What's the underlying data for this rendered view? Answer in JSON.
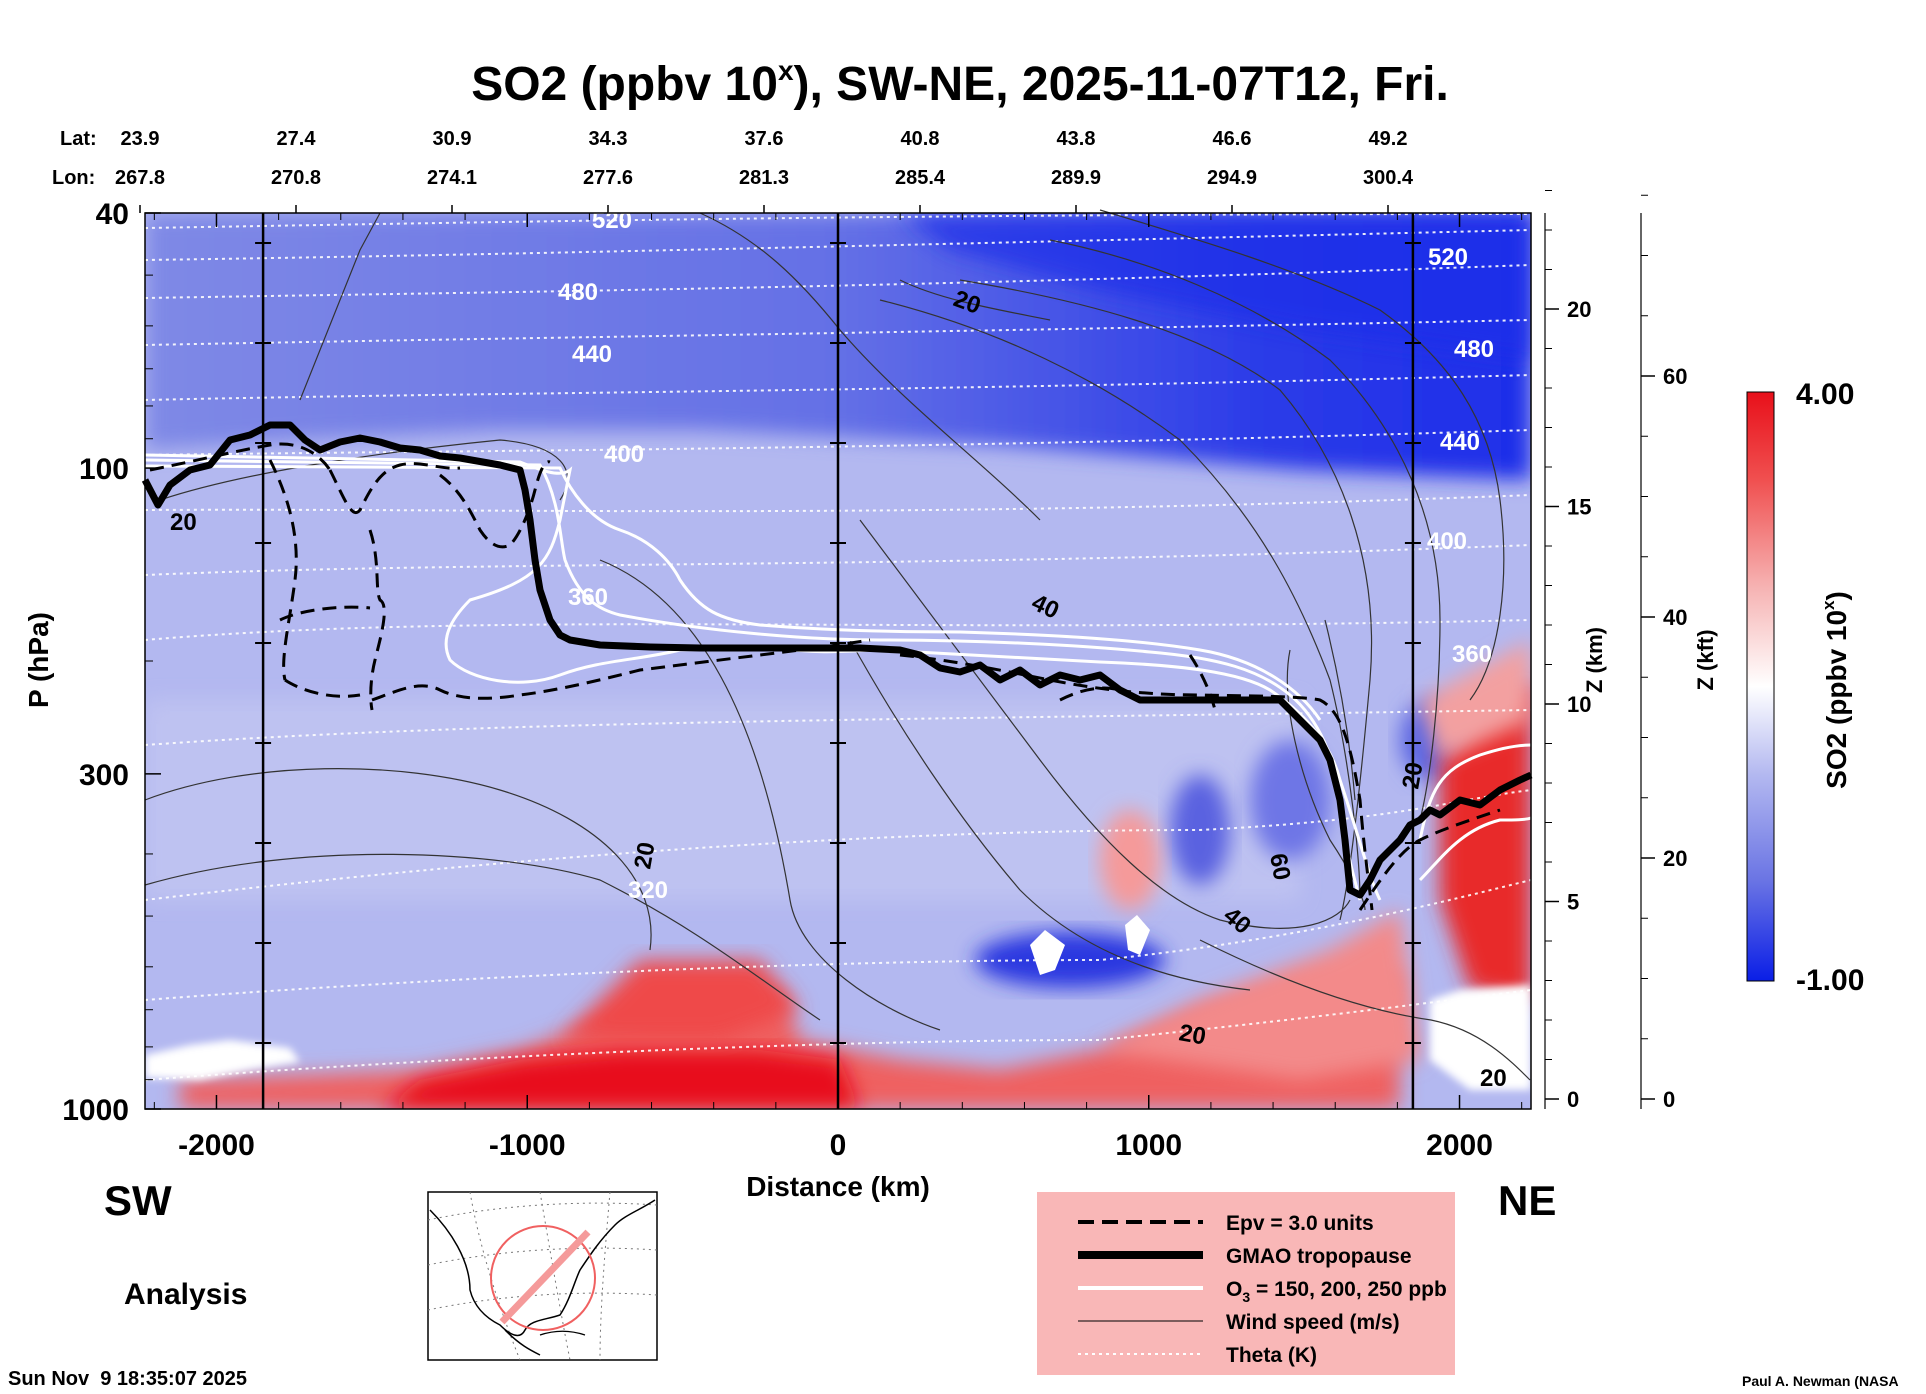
{
  "chart_data": {
    "type": "heatmap",
    "title": "SO2 (ppbv 10",
    "title_sup": "x",
    "title_suffix": "), SW-NE, 2025-11-07T12, Fri.",
    "xlabel": "Distance (km)",
    "ylabel": "P (hPa)",
    "xlim": [
      -2230,
      2230
    ],
    "ylim": [
      1000,
      40
    ],
    "y_scale": "log",
    "x_ticks": [
      "-2000",
      "-1000",
      "0",
      "1000",
      "2000"
    ],
    "x_tick_values": [
      -2000,
      -1000,
      0,
      1000,
      2000
    ],
    "y_ticks": [
      "40",
      "100",
      "300",
      "1000"
    ],
    "y_tick_values": [
      40,
      100,
      300,
      1000
    ],
    "z_km_label": "Z (km)",
    "z_km_ticks": [
      "0",
      "5",
      "10",
      "15",
      "20"
    ],
    "z_kft_label": "Z (kft)",
    "z_kft_ticks": [
      "0",
      "20",
      "40",
      "60"
    ],
    "latlon": {
      "lat_label": "Lat:",
      "lon_label": "Lon:",
      "lat": [
        "23.9",
        "27.4",
        "30.9",
        "34.3",
        "37.6",
        "40.8",
        "43.8",
        "46.6",
        "49.2"
      ],
      "lon": [
        "267.8",
        "270.8",
        "274.1",
        "277.6",
        "281.3",
        "285.4",
        "289.9",
        "294.9",
        "300.4"
      ]
    },
    "colorbar": {
      "label": "SO2 (ppbv 10",
      "label_sup": "x",
      "label_suffix": ")",
      "max": "4.00",
      "min": "-1.00",
      "colors": [
        "#0a1ee6",
        "#6a74e4",
        "#b3b8f0",
        "#ffffff",
        "#f6b2b2",
        "#f05050",
        "#e8101a"
      ]
    },
    "theta_labels": [
      "520",
      "480",
      "440",
      "400",
      "360",
      "320",
      "520",
      "480",
      "440",
      "400",
      "360"
    ],
    "wind_labels": [
      "20",
      "20",
      "40",
      "20",
      "60",
      "40",
      "20",
      "20",
      "20"
    ],
    "vertical_lines_km": [
      -1850,
      0,
      1850
    ],
    "direction_left": "SW",
    "direction_right": "NE",
    "analysis_label": "Analysis",
    "legend": [
      {
        "label": "Epv = 3.0 units",
        "style": "dashed",
        "color": "#000000"
      },
      {
        "label": "GMAO tropopause",
        "style": "thick",
        "color": "#000000"
      },
      {
        "label": "O",
        "sub": "3",
        "label_rest": " = 150, 200, 250 ppb",
        "style": "white",
        "color": "#ffffff"
      },
      {
        "label": "Wind speed (m/s)",
        "style": "thin",
        "color": "#000000"
      },
      {
        "label": "Theta (K)",
        "style": "dotted",
        "color": "#ffffff"
      }
    ],
    "legend_bg": "#f9b7b7",
    "timestamp": "Sun Nov  9 18:35:07 2025",
    "credit": "Paul A. Newman (NASA"
  }
}
